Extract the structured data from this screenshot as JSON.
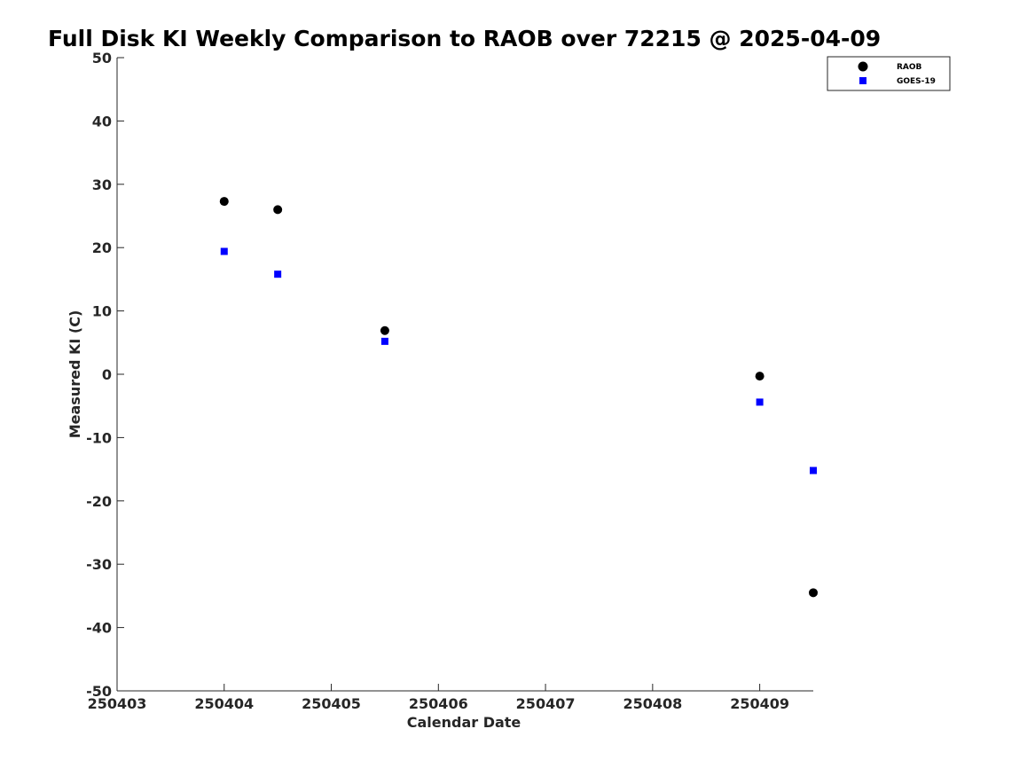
{
  "chart_data": {
    "type": "scatter",
    "title": "Full Disk KI Weekly Comparison to RAOB over 72215 @ 2025-04-09",
    "xlabel": "Calendar Date",
    "ylabel": "Measured KI (C)",
    "xlim": [
      250403,
      250409.5
    ],
    "ylim": [
      -50,
      50
    ],
    "x_ticks": [
      250403,
      250404,
      250405,
      250406,
      250407,
      250408,
      250409
    ],
    "x_tick_labels": [
      "250403",
      "250404",
      "250405",
      "250406",
      "250407",
      "250408",
      "250409"
    ],
    "y_ticks": [
      -50,
      -40,
      -30,
      -20,
      -10,
      0,
      10,
      20,
      30,
      40,
      50
    ],
    "y_tick_labels": [
      "-50",
      "-40",
      "-30",
      "-20",
      "-10",
      "0",
      "10",
      "20",
      "30",
      "40",
      "50"
    ],
    "legend_position": "top-right",
    "series": [
      {
        "name": "RAOB",
        "marker": "circle",
        "color": "#000000",
        "x": [
          250404,
          250404.5,
          250405.5,
          250409,
          250409.5
        ],
        "y": [
          27.3,
          26.0,
          6.9,
          -0.3,
          -34.5
        ]
      },
      {
        "name": "GOES-19",
        "marker": "square",
        "color": "#0000ff",
        "x": [
          250404,
          250404.5,
          250405.5,
          250409,
          250409.5
        ],
        "y": [
          19.4,
          15.8,
          5.2,
          -4.4,
          -15.2
        ]
      }
    ]
  }
}
